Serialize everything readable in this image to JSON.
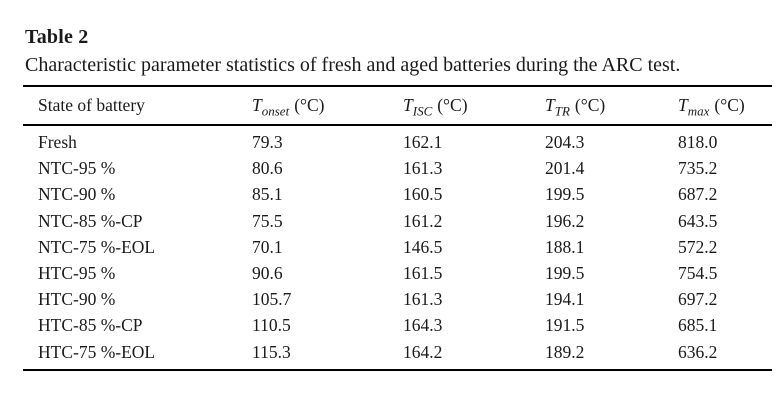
{
  "document": {
    "title": "Table 2",
    "caption": "Characteristic parameter statistics of fresh and aged batteries during the ARC test."
  },
  "table": {
    "columns": [
      {
        "label": "State of battery"
      },
      {
        "symbol": "T",
        "sub": "onset",
        "unit": "(°C)"
      },
      {
        "symbol": "T",
        "sub": "ISC",
        "unit": "(°C)"
      },
      {
        "symbol": "T",
        "sub": "TR",
        "unit": "(°C)"
      },
      {
        "symbol": "T",
        "sub": "max",
        "unit": "(°C)"
      }
    ],
    "rows": [
      {
        "label": "Fresh",
        "values": [
          "79.3",
          "162.1",
          "204.3",
          "818.0"
        ]
      },
      {
        "label": "NTC-95 %",
        "values": [
          "80.6",
          "161.3",
          "201.4",
          "735.2"
        ]
      },
      {
        "label": "NTC-90 %",
        "values": [
          "85.1",
          "160.5",
          "199.5",
          "687.2"
        ]
      },
      {
        "label": "NTC-85 %-CP",
        "values": [
          "75.5",
          "161.2",
          "196.2",
          "643.5"
        ]
      },
      {
        "label": "NTC-75 %-EOL",
        "values": [
          "70.1",
          "146.5",
          "188.1",
          "572.2"
        ]
      },
      {
        "label": "HTC-95 %",
        "values": [
          "90.6",
          "161.5",
          "199.5",
          "754.5"
        ]
      },
      {
        "label": "HTC-90 %",
        "values": [
          "105.7",
          "161.3",
          "194.1",
          "697.2"
        ]
      },
      {
        "label": "HTC-85 %-CP",
        "values": [
          "110.5",
          "164.3",
          "191.5",
          "685.1"
        ]
      },
      {
        "label": "HTC-75 %-EOL",
        "values": [
          "115.3",
          "164.2",
          "189.2",
          "636.2"
        ]
      }
    ]
  },
  "colors": {
    "text": "#1a1a1a",
    "rule": "#000000",
    "background": "#ffffff"
  }
}
